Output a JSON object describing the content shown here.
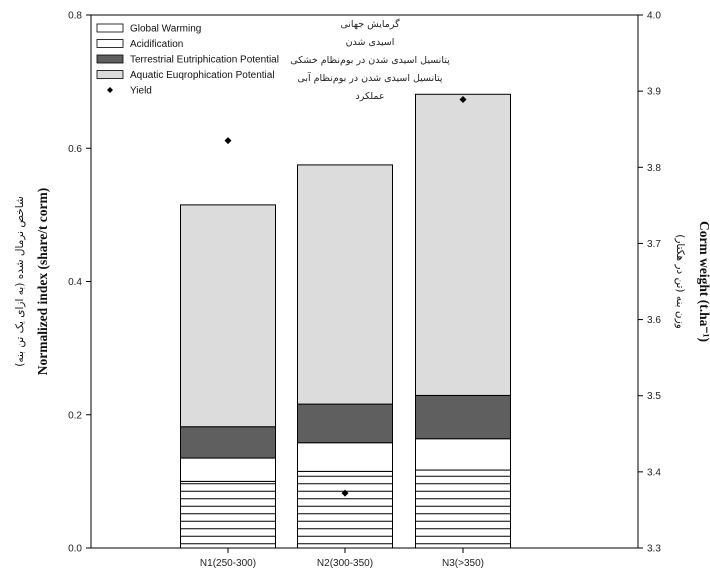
{
  "chart_data": {
    "type": "bar",
    "stacked": true,
    "categories": [
      "N1(250-300)",
      "N2(300-350)",
      "N3(>350)"
    ],
    "series": [
      {
        "name": "Global Warming",
        "values": [
          0.1,
          0.115,
          0.117
        ],
        "fill": "#ffffff",
        "pattern": "horizontal-lines"
      },
      {
        "name": "Acidification",
        "values": [
          0.035,
          0.043,
          0.047
        ],
        "fill": "#ffffff"
      },
      {
        "name": "Terrestrial Eutriphication  Potential",
        "values": [
          0.047,
          0.058,
          0.065
        ],
        "fill": "#5f5f5f"
      },
      {
        "name": "Aquatic Euqrophication Potential",
        "values": [
          0.333,
          0.359,
          0.452
        ],
        "fill": "#dcdcdc"
      }
    ],
    "yield": {
      "name": "Yield",
      "axis": "right",
      "values": [
        3.835,
        3.372,
        3.889
      ]
    },
    "ylim": [
      0,
      0.8
    ],
    "yticks": [
      "0.0",
      "0.2",
      "0.4",
      "0.6",
      "0.8"
    ],
    "y2lim": [
      3.3,
      4.0
    ],
    "y2ticks": [
      "3.3",
      "3.4",
      "3.5",
      "3.6",
      "3.7",
      "3.8",
      "3.9",
      "4.0"
    ],
    "ylabel": "Normalized index (share/t corm)",
    "ylabel_fa": "شاخص نرمال شده (به ازای یک تن بنه)",
    "y2label": "Corm weight (t.ha⁻¹)",
    "y2label_fa": "وزن بنه (تن در هکتار)",
    "legend_position": "top-left",
    "legend_fa": [
      "گرمایش جهانی",
      "اسیدی شدن",
      "پتانسیل اسیدی شدن در بوم‌نظام خشکی",
      "پتانسیل اسیدی شدن در بوم‌نظام آبی",
      "عملکرد"
    ]
  }
}
